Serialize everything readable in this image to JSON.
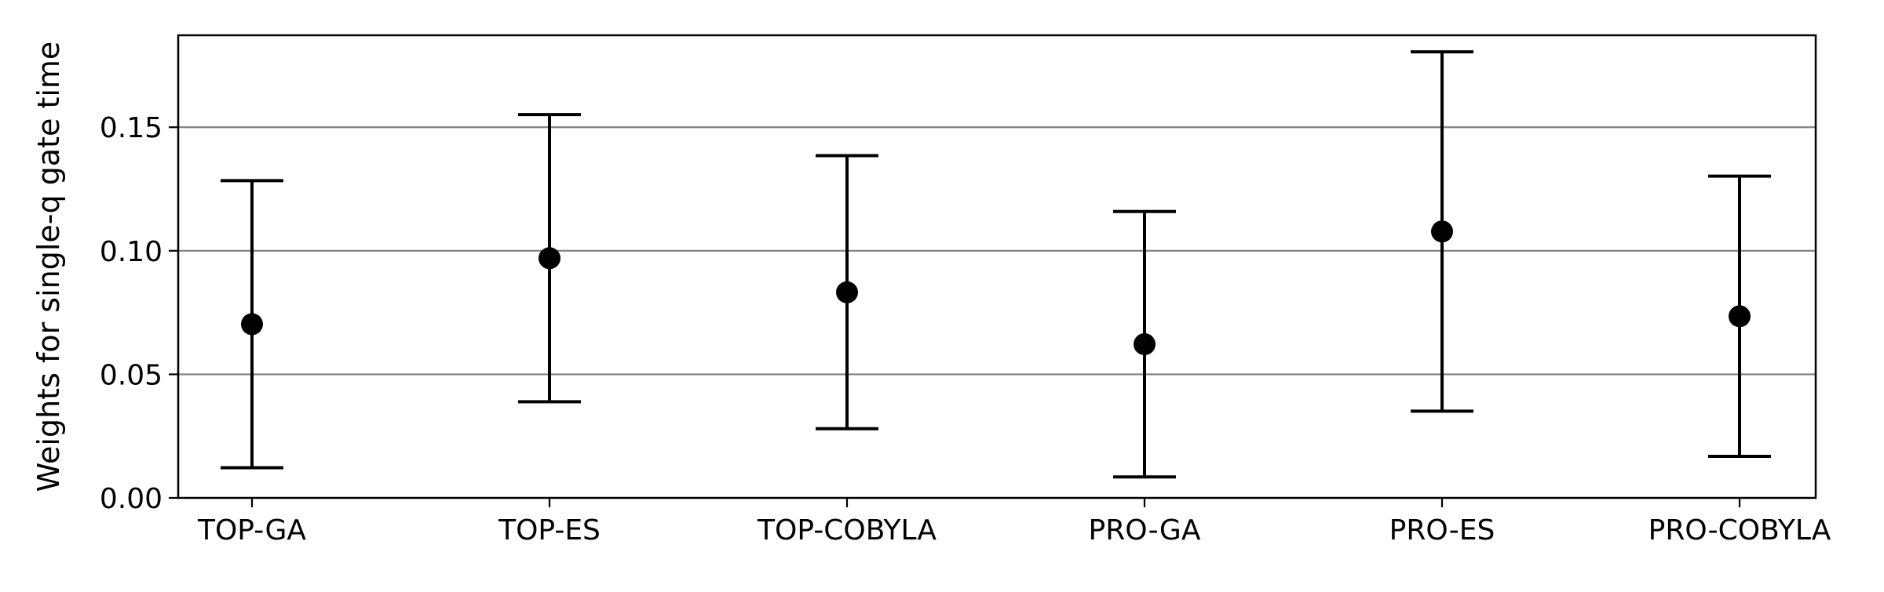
{
  "chart_data": {
    "type": "errorbar",
    "title": "",
    "xlabel": "",
    "ylabel": "Weights for single-q gate time",
    "categories": [
      "TOP-GA",
      "TOP-ES",
      "TOP-COBYLA",
      "PRO-GA",
      "PRO-ES",
      "PRO-COBYLA"
    ],
    "series": [
      {
        "values": [
          0.0703,
          0.097,
          0.0832,
          0.0622,
          0.1078,
          0.0735
        ],
        "lower": [
          0.0122,
          0.0389,
          0.028,
          0.0085,
          0.0351,
          0.0168
        ],
        "upper": [
          0.1284,
          0.1551,
          0.1385,
          0.1159,
          0.1805,
          0.1302
        ],
        "color": "#000000"
      }
    ],
    "ylim": [
      0.0,
      0.1872
    ],
    "yticks": [
      "0.00",
      "0.05",
      "0.10",
      "0.15"
    ],
    "ytick_values": [
      0.0,
      0.05,
      0.1,
      0.15
    ],
    "grid": "horizontal",
    "grid_color": "#808080"
  }
}
